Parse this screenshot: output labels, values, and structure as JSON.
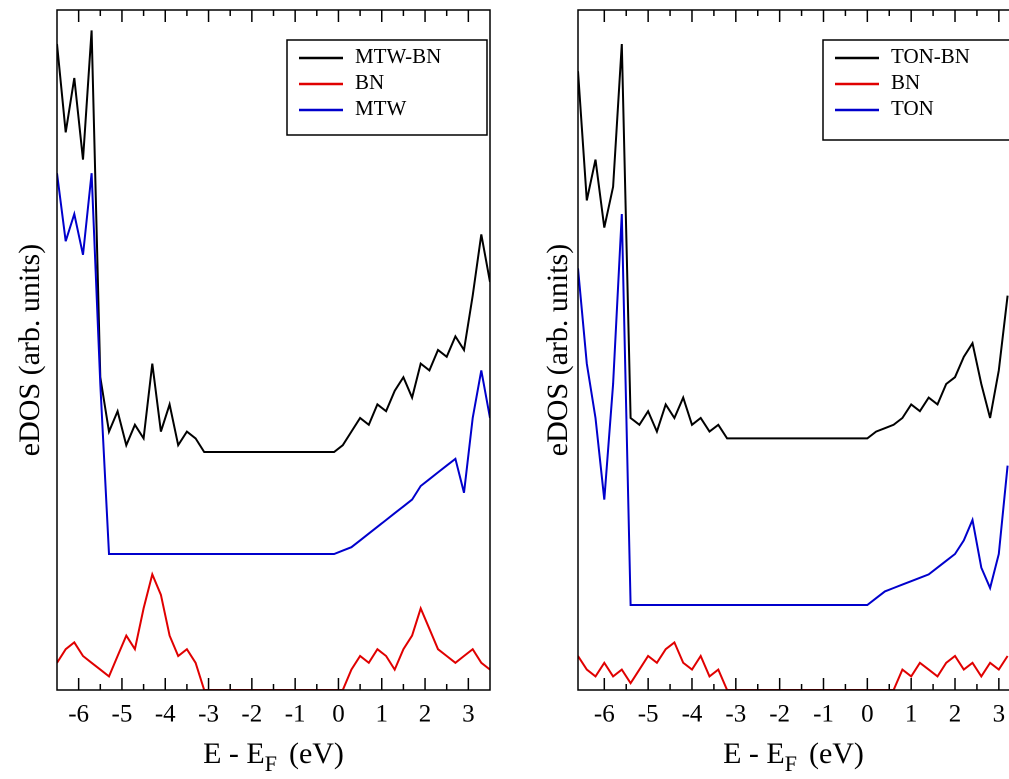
{
  "chart_data": [
    {
      "type": "line",
      "xlabel": [
        "E - E",
        "F",
        "(eV)"
      ],
      "ylabel": "eDOS (arb. units)",
      "x": [
        -6.5,
        -6.3,
        -6.1,
        -5.9,
        -5.7,
        -5.5,
        -5.3,
        -5.1,
        -4.9,
        -4.7,
        -4.5,
        -4.3,
        -4.1,
        -3.9,
        -3.7,
        -3.5,
        -3.3,
        -3.1,
        -2.9,
        -2.7,
        -2.5,
        -2.3,
        -2.1,
        -1.9,
        -1.7,
        -1.5,
        -1.3,
        -1.1,
        -0.9,
        -0.7,
        -0.5,
        -0.3,
        -0.1,
        0.1,
        0.3,
        0.5,
        0.7,
        0.9,
        1.1,
        1.3,
        1.5,
        1.7,
        1.9,
        2.1,
        2.3,
        2.5,
        2.7,
        2.9,
        3.1,
        3.3,
        3.5
      ],
      "series": [
        {
          "name": "MTW-BN",
          "color": "#000000",
          "values": [
            95,
            82,
            90,
            78,
            97,
            46,
            38,
            41,
            36,
            39,
            37,
            48,
            38,
            42,
            36,
            38,
            37,
            35,
            35,
            35,
            35,
            35,
            35,
            35,
            35,
            35,
            35,
            35,
            35,
            35,
            35,
            35,
            35,
            36,
            38,
            40,
            39,
            42,
            41,
            44,
            46,
            43,
            48,
            47,
            50,
            49,
            52,
            50,
            58,
            67,
            60
          ]
        },
        {
          "name": "BN",
          "color": "#e00000",
          "values": [
            4,
            6,
            7,
            5,
            4,
            3,
            2,
            5,
            8,
            6,
            12,
            17,
            14,
            8,
            5,
            6,
            4,
            0,
            0,
            0,
            0,
            0,
            0,
            0,
            0,
            0,
            0,
            0,
            0,
            0,
            0,
            0,
            0,
            0,
            3,
            5,
            4,
            6,
            5,
            3,
            6,
            8,
            12,
            9,
            6,
            5,
            4,
            5,
            6,
            4,
            3
          ]
        },
        {
          "name": "MTW",
          "color": "#0000cc",
          "values": [
            76,
            66,
            70,
            64,
            76,
            45,
            20,
            20,
            20,
            20,
            20,
            20,
            20,
            20,
            20,
            20,
            20,
            20,
            20,
            20,
            20,
            20,
            20,
            20,
            20,
            20,
            20,
            20,
            20,
            20,
            20,
            20,
            20,
            20.5,
            21,
            22,
            23,
            24,
            25,
            26,
            27,
            28,
            30,
            31,
            32,
            33,
            34,
            29,
            40,
            47,
            40
          ]
        }
      ],
      "xlim": [
        -6.5,
        3.5
      ],
      "xticks": [
        -6,
        -5,
        -4,
        -3,
        -2,
        -1,
        0,
        1,
        2,
        3
      ],
      "ylim": [
        0,
        100
      ],
      "legend": "upper right"
    },
    {
      "type": "line",
      "xlabel": [
        "E - E",
        "F",
        "(eV)"
      ],
      "ylabel": "eDOS (arb. units)",
      "x": [
        -6.6,
        -6.4,
        -6.2,
        -6.0,
        -5.8,
        -5.6,
        -5.4,
        -5.2,
        -5.0,
        -4.8,
        -4.6,
        -4.4,
        -4.2,
        -4.0,
        -3.8,
        -3.6,
        -3.4,
        -3.2,
        -3.0,
        -2.8,
        -2.6,
        -2.4,
        -2.2,
        -2.0,
        -1.8,
        -1.6,
        -1.4,
        -1.2,
        -1.0,
        -0.8,
        -0.6,
        -0.4,
        -0.2,
        0.0,
        0.2,
        0.4,
        0.6,
        0.8,
        1.0,
        1.2,
        1.4,
        1.6,
        1.8,
        2.0,
        2.2,
        2.4,
        2.6,
        2.8,
        3.0,
        3.2
      ],
      "series": [
        {
          "name": "TON-BN",
          "color": "#000000",
          "values": [
            91,
            72,
            78,
            68,
            74,
            95,
            40,
            39,
            41,
            38,
            42,
            40,
            43,
            39,
            40,
            38,
            39,
            37,
            37,
            37,
            37,
            37,
            37,
            37,
            37,
            37,
            37,
            37,
            37,
            37,
            37,
            37,
            37,
            37,
            38,
            38.5,
            39,
            40,
            42,
            41,
            43,
            42,
            45,
            46,
            49,
            51,
            45,
            40,
            47,
            58
          ]
        },
        {
          "name": "BN",
          "color": "#e00000",
          "values": [
            5,
            3,
            2,
            4,
            2,
            3,
            1,
            3,
            5,
            4,
            6,
            7,
            4,
            3,
            5,
            2,
            3,
            0,
            0,
            0,
            0,
            0,
            0,
            0,
            0,
            0,
            0,
            0,
            0,
            0,
            0,
            0,
            0,
            0,
            0,
            0,
            0,
            3,
            2,
            4,
            3,
            2,
            4,
            5,
            3,
            4,
            2,
            4,
            3,
            5
          ]
        },
        {
          "name": "TON",
          "color": "#0000cc",
          "values": [
            62,
            48,
            40,
            28,
            45,
            70,
            12.5,
            12.5,
            12.5,
            12.5,
            12.5,
            12.5,
            12.5,
            12.5,
            12.5,
            12.5,
            12.5,
            12.5,
            12.5,
            12.5,
            12.5,
            12.5,
            12.5,
            12.5,
            12.5,
            12.5,
            12.5,
            12.5,
            12.5,
            12.5,
            12.5,
            12.5,
            12.5,
            12.5,
            13.5,
            14.5,
            15,
            15.5,
            16,
            16.5,
            17,
            18,
            19,
            20,
            22,
            25,
            18,
            15,
            20,
            33
          ]
        }
      ],
      "xlim": [
        -6.6,
        3.3
      ],
      "xticks": [
        -6,
        -5,
        -4,
        -3,
        -2,
        -1,
        0,
        1,
        2,
        3
      ],
      "ylim": [
        0,
        100
      ],
      "legend": "upper right"
    }
  ]
}
